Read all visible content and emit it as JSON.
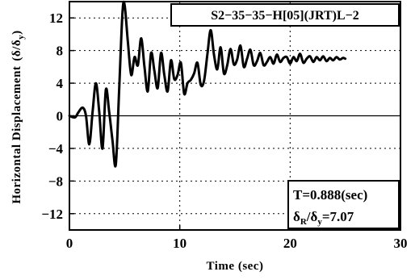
{
  "chart_data": {
    "type": "line",
    "title": "S2−35−35−H[05](JRT)L−2",
    "xlabel": "Time (sec)",
    "ylabel": "Horizontal Displacement",
    "ylabel_symbol_main": "(δ/δ",
    "ylabel_symbol_sub": "y",
    "ylabel_symbol_end": ")",
    "xlim": [
      0,
      30
    ],
    "ylim": [
      -14,
      14
    ],
    "x_ticks": [
      0,
      10,
      20,
      30
    ],
    "x_tick_labels": [
      "0",
      "10",
      "20",
      "30"
    ],
    "y_ticks": [
      12,
      8,
      4,
      0,
      -4,
      -8,
      -12
    ],
    "y_tick_labels": [
      "12",
      "8",
      "4",
      "0",
      "−4",
      "−8",
      "−12"
    ],
    "grid": true,
    "annotation": {
      "period": "T=0.888(sec)",
      "ratio_delta": "δ",
      "ratio_sub_R": "R",
      "ratio_slash": "/δ",
      "ratio_sub_y": "y",
      "ratio_value": "=7.07"
    },
    "series": [
      {
        "x": [
          0.0,
          0.5,
          0.8,
          1.2,
          1.5,
          1.8,
          2.1,
          2.4,
          2.7,
          3.0,
          3.3,
          3.6,
          3.9,
          4.2,
          4.5,
          4.8,
          5.0,
          5.3,
          5.6,
          5.9,
          6.2,
          6.5,
          6.8,
          7.1,
          7.4,
          7.7,
          8.0,
          8.3,
          8.6,
          8.9,
          9.2,
          9.5,
          9.8,
          10.1,
          10.4,
          10.7,
          11.0,
          11.3,
          11.6,
          11.9,
          12.2,
          12.5,
          12.8,
          13.1,
          13.4,
          13.7,
          14.0,
          14.3,
          14.6,
          14.9,
          15.2,
          15.5,
          15.8,
          16.1,
          16.4,
          16.7,
          17.0,
          17.3,
          17.6,
          17.9,
          18.2,
          18.5,
          18.8,
          19.1,
          19.4,
          19.7,
          20.0,
          20.3,
          20.6,
          20.9,
          21.2,
          21.5,
          21.8,
          22.1,
          22.4,
          22.7,
          23.0,
          23.3,
          23.6,
          23.9,
          24.2,
          24.5,
          24.8,
          25.0
        ],
        "y": [
          0.0,
          -0.2,
          0.4,
          1.0,
          0.0,
          -3.5,
          0.5,
          4.0,
          0.5,
          -4.0,
          3.2,
          0.5,
          -3.0,
          -6.0,
          3.0,
          12.5,
          13.6,
          9.0,
          5.0,
          7.2,
          6.2,
          9.5,
          6.0,
          3.0,
          7.7,
          5.5,
          3.4,
          7.7,
          5.0,
          3.0,
          6.8,
          4.5,
          5.0,
          6.5,
          2.7,
          4.0,
          4.4,
          5.2,
          6.5,
          3.8,
          4.3,
          7.5,
          10.5,
          7.5,
          5.7,
          8.4,
          5.2,
          6.2,
          8.2,
          6.3,
          6.9,
          8.6,
          6.0,
          7.0,
          8.1,
          6.2,
          6.7,
          7.7,
          6.2,
          6.6,
          7.2,
          6.4,
          7.5,
          6.6,
          7.1,
          7.2,
          6.4,
          7.2,
          6.7,
          7.6,
          6.5,
          7.0,
          7.3,
          6.6,
          7.2,
          6.8,
          7.3,
          6.7,
          7.1,
          6.8,
          7.2,
          6.9,
          7.1,
          7.0
        ]
      }
    ]
  }
}
